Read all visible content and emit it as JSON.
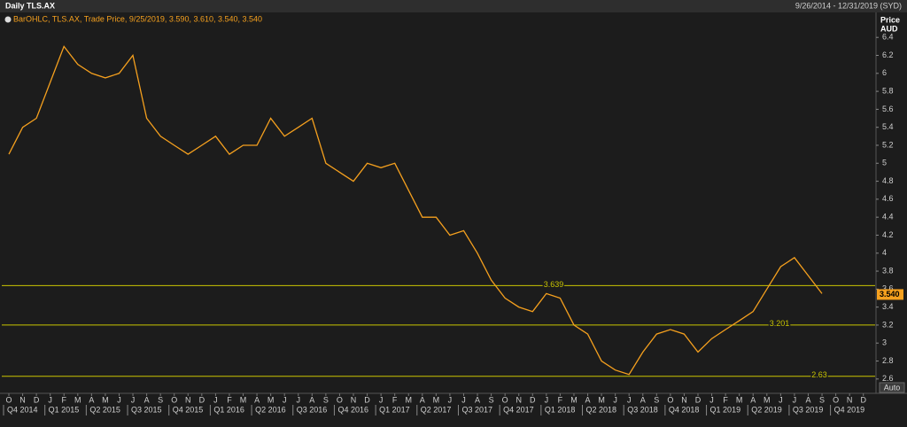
{
  "chart_data": {
    "type": "line",
    "title": "Daily TLS.AX",
    "date_range": "9/26/2014 - 12/31/2019 (SYD)",
    "legend": "BarOHLC, TLS.AX, Trade Price, 9/25/2019, 3.590, 3.610, 3.540, 3.540",
    "y_label": "Price",
    "y_unit": "AUD",
    "button": "Auto",
    "categories": [
      "O",
      "N",
      "D",
      "J",
      "F",
      "M",
      "A",
      "M",
      "J",
      "J",
      "A",
      "S",
      "O",
      "N",
      "D",
      "J",
      "F",
      "M",
      "A",
      "M",
      "J",
      "J",
      "A",
      "S",
      "O",
      "N",
      "D",
      "J",
      "F",
      "M",
      "A",
      "M",
      "J",
      "J",
      "A",
      "S",
      "O",
      "N",
      "D",
      "J",
      "F",
      "M",
      "A",
      "M",
      "J",
      "J",
      "A",
      "S",
      "O",
      "N",
      "D",
      "J",
      "F",
      "M",
      "A",
      "M",
      "J",
      "J",
      "A",
      "S",
      "O",
      "N",
      "D"
    ],
    "quarters": [
      "Q4 2014",
      "Q1 2015",
      "Q2 2015",
      "Q3 2015",
      "Q4 2015",
      "Q1 2016",
      "Q2 2016",
      "Q3 2016",
      "Q4 2016",
      "Q1 2017",
      "Q2 2017",
      "Q3 2017",
      "Q4 2017",
      "Q1 2018",
      "Q2 2018",
      "Q3 2018",
      "Q4 2018",
      "Q1 2019",
      "Q2 2019",
      "Q3 2019",
      "Q4 2019"
    ],
    "values": [
      5.1,
      5.4,
      5.5,
      5.9,
      6.3,
      6.1,
      6.0,
      5.95,
      6.0,
      6.2,
      5.5,
      5.3,
      5.2,
      5.1,
      5.2,
      5.3,
      5.1,
      5.2,
      5.2,
      5.5,
      5.3,
      5.4,
      5.5,
      5.0,
      4.9,
      4.8,
      5.0,
      4.95,
      5.0,
      4.7,
      4.4,
      4.4,
      4.2,
      4.25,
      4.0,
      3.7,
      3.5,
      3.4,
      3.35,
      3.55,
      3.5,
      3.2,
      3.1,
      2.8,
      2.7,
      2.65,
      2.9,
      3.1,
      3.15,
      3.1,
      2.9,
      3.05,
      3.15,
      3.25,
      3.35,
      3.6,
      3.85,
      3.95,
      3.75,
      3.55,
      null,
      null,
      null
    ],
    "color": "#f5a01e",
    "last_price": {
      "value": 3.54,
      "label": "3.540"
    },
    "levels": [
      {
        "value": 3.639,
        "label": "3.639"
      },
      {
        "value": 3.201,
        "label": "3.201"
      },
      {
        "value": 2.63,
        "label": "2.63"
      }
    ],
    "level_color": "#c9c400",
    "ylim": [
      2.48,
      6.54
    ],
    "yticks": [
      2.6,
      2.8,
      3,
      3.2,
      3.4,
      3.6,
      3.8,
      4,
      4.2,
      4.4,
      4.6,
      4.8,
      5,
      5.2,
      5.4,
      5.6,
      5.8,
      6,
      6.2,
      6.4
    ],
    "grid": false
  }
}
